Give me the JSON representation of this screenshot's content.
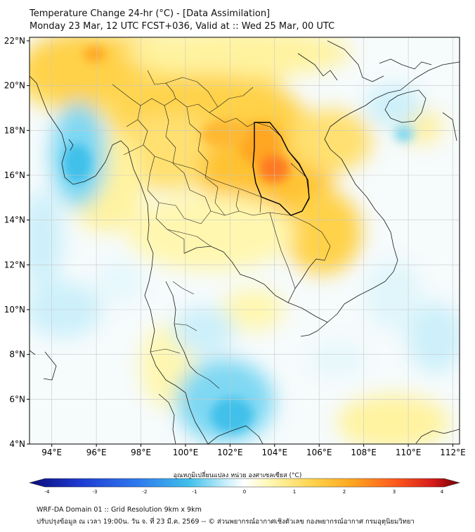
{
  "title_line1": "Temperature Change 24-hr (°C) - [Data Assimilation]",
  "title_line2": "Monday 23 Mar, 12 UTC FCST+036, Valid at :: Wed 25 Mar, 00 UTC",
  "lat_labels": [
    "22°N",
    "20°N",
    "18°N",
    "16°N",
    "14°N",
    "12°N",
    "10°N",
    "8°N",
    "6°N",
    "4°N"
  ],
  "lon_labels": [
    "94°E",
    "96°E",
    "98°E",
    "100°E",
    "102°E",
    "104°E",
    "106°E",
    "108°E",
    "110°E",
    "112°E"
  ],
  "colorbar": {
    "label": "อุณหภูมิเปลี่ยนแปลง หน่วย องศาเซลเซียส (°C)",
    "ticks": [
      "-4",
      "-3",
      "-2",
      "-1",
      "0",
      "1",
      "2",
      "3",
      "4"
    ],
    "range": [
      -4,
      4
    ]
  },
  "footer_line1": "WRF-DA Domain 01 :: Grid Resolution 9km x 9km",
  "footer_line2": "ปรับปรุงข้อมูล ณ เวลา 19:00น. วัน จ. ที่ 23 มี.ค. 2569 -- © ส่วนพยากรณ์อากาศเชิงตัวเลข กองพยากรณ์อากาศ กรมอุตุนิยมวิทยา",
  "colors": {
    "ocean_neutral": "#f6fbfc",
    "warm_light": "#fff7b0",
    "warm_mid": "#ffd24a",
    "warm_strong": "#ffa620",
    "warm_max": "#ff7a24",
    "cool_light": "#cdf0fa",
    "cool_mid": "#7fd8f3",
    "cool_strong": "#3fc0ea",
    "coastline": "#1a1a1a",
    "gridline": "#c8c8c8"
  }
}
